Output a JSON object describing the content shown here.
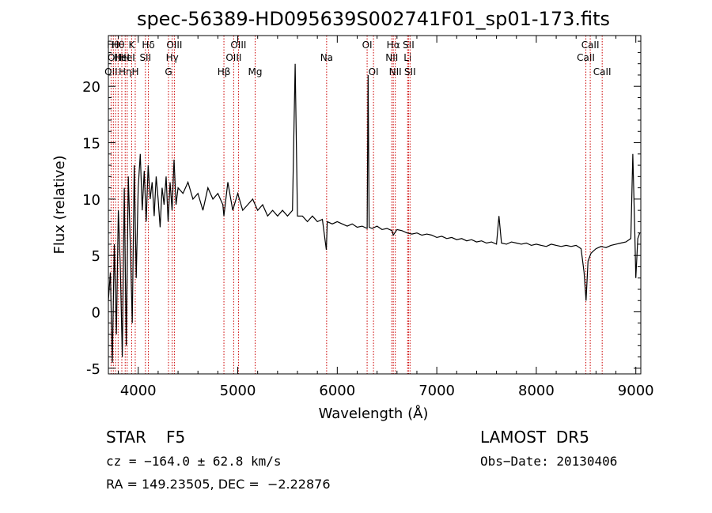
{
  "chart_data": {
    "type": "line",
    "title": "spec-56389-HD095639S002741F01_sp01-173.fits",
    "xlabel": "Wavelength (Å)",
    "ylabel": "Flux (relative)",
    "xlim": [
      3700,
      9050
    ],
    "ylim": [
      -5.5,
      24.5
    ],
    "xticks": [
      4000,
      5000,
      6000,
      7000,
      8000,
      9000
    ],
    "yticks": [
      -5,
      0,
      5,
      10,
      15,
      20
    ],
    "grid": false,
    "line_color": "#000000",
    "marker_color": "#cc0000",
    "series": [
      {
        "x": [
          3700,
          3720,
          3740,
          3760,
          3780,
          3800,
          3820,
          3840,
          3860,
          3880,
          3900,
          3920,
          3940,
          3960,
          3980,
          4000,
          4020,
          4040,
          4060,
          4080,
          4100,
          4120,
          4140,
          4160,
          4180,
          4200,
          4220,
          4240,
          4260,
          4280,
          4300,
          4320,
          4340,
          4360,
          4380,
          4400,
          4450,
          4500,
          4550,
          4600,
          4650,
          4700,
          4750,
          4800,
          4850,
          4861,
          4900,
          4950,
          5000,
          5050,
          5100,
          5150,
          5200,
          5250,
          5300,
          5350,
          5400,
          5450,
          5500,
          5550,
          5577,
          5600,
          5650,
          5700,
          5750,
          5800,
          5850,
          5890,
          5900,
          5950,
          6000,
          6050,
          6100,
          6150,
          6200,
          6250,
          6300,
          6310,
          6320,
          6350,
          6400,
          6450,
          6500,
          6550,
          6563,
          6600,
          6650,
          6700,
          6750,
          6800,
          6850,
          6900,
          6950,
          7000,
          7050,
          7100,
          7150,
          7200,
          7250,
          7300,
          7350,
          7400,
          7450,
          7500,
          7550,
          7600,
          7625,
          7650,
          7700,
          7750,
          7800,
          7850,
          7900,
          7950,
          8000,
          8050,
          8100,
          8150,
          8200,
          8250,
          8300,
          8350,
          8400,
          8450,
          8480,
          8500,
          8520,
          8550,
          8600,
          8650,
          8700,
          8750,
          8800,
          8850,
          8900,
          8950,
          8970,
          8990,
          9000,
          9020,
          9040
        ],
        "y": [
          1.0,
          3.5,
          -4.5,
          6.0,
          -2.0,
          9.0,
          4.0,
          -4.0,
          11.0,
          -3.0,
          12.0,
          6.0,
          -1.0,
          13.0,
          3.0,
          11.0,
          14.0,
          9.0,
          12.5,
          8.0,
          13.0,
          10.0,
          11.5,
          8.5,
          12.0,
          10.0,
          7.5,
          11.0,
          9.5,
          12.0,
          8.0,
          11.5,
          9.0,
          13.5,
          9.5,
          11.0,
          10.5,
          11.5,
          10.0,
          10.5,
          9.0,
          11.0,
          10.0,
          10.5,
          9.5,
          8.5,
          11.5,
          9.0,
          10.5,
          9.0,
          9.5,
          10.0,
          9.0,
          9.5,
          8.5,
          9.0,
          8.5,
          9.0,
          8.5,
          9.0,
          22.0,
          8.5,
          8.5,
          8.0,
          8.5,
          8.0,
          8.2,
          5.5,
          8.0,
          7.8,
          8.0,
          7.8,
          7.6,
          7.8,
          7.5,
          7.6,
          7.4,
          21.0,
          7.5,
          7.4,
          7.6,
          7.3,
          7.4,
          7.2,
          6.8,
          7.3,
          7.2,
          7.0,
          6.9,
          7.0,
          6.8,
          6.9,
          6.8,
          6.6,
          6.7,
          6.5,
          6.6,
          6.4,
          6.5,
          6.3,
          6.4,
          6.2,
          6.3,
          6.1,
          6.2,
          6.0,
          8.5,
          6.1,
          6.0,
          6.2,
          6.1,
          6.0,
          6.1,
          5.9,
          6.0,
          5.9,
          5.8,
          6.0,
          5.9,
          5.8,
          5.9,
          5.8,
          5.9,
          5.6,
          3.5,
          1.0,
          4.5,
          5.2,
          5.6,
          5.8,
          5.7,
          5.9,
          6.0,
          6.1,
          6.2,
          6.5,
          14.0,
          6.8,
          3.0,
          6.5,
          7.0
        ]
      }
    ],
    "line_markers": [
      {
        "x": 3727,
        "row": 3,
        "label": "OII"
      },
      {
        "x": 3750,
        "row": 1,
        "label": "Hθ"
      },
      {
        "x": 3772,
        "row": 2,
        "label": "OIII"
      },
      {
        "x": 3798,
        "row": 1,
        "label": "Hθ"
      },
      {
        "x": 3835,
        "row": 2,
        "label": "HeI"
      },
      {
        "x": 3869,
        "row": 3,
        "label": "Hη"
      },
      {
        "x": 3889,
        "row": 2,
        "label": "HeI"
      },
      {
        "x": 3934,
        "row": 1,
        "label": "K"
      },
      {
        "x": 3970,
        "row": 3,
        "label": "H"
      },
      {
        "x": 4072,
        "row": 2,
        "label": "SII"
      },
      {
        "x": 4102,
        "row": 1,
        "label": "Hδ"
      },
      {
        "x": 4304,
        "row": 3,
        "label": "G"
      },
      {
        "x": 4341,
        "row": 2,
        "label": "Hγ"
      },
      {
        "x": 4363,
        "row": 1,
        "label": "OIII"
      },
      {
        "x": 4861,
        "row": 3,
        "label": "Hβ"
      },
      {
        "x": 4959,
        "row": 2,
        "label": "OIII"
      },
      {
        "x": 5007,
        "row": 1,
        "label": "OIII"
      },
      {
        "x": 5175,
        "row": 3,
        "label": "Mg"
      },
      {
        "x": 5893,
        "row": 2,
        "label": "Na"
      },
      {
        "x": 6300,
        "row": 1,
        "label": "OI"
      },
      {
        "x": 6364,
        "row": 3,
        "label": "OI"
      },
      {
        "x": 6548,
        "row": 2,
        "label": "NII"
      },
      {
        "x": 6563,
        "row": 1,
        "label": "Hα"
      },
      {
        "x": 6583,
        "row": 3,
        "label": "NII"
      },
      {
        "x": 6707,
        "row": 2,
        "label": "Li"
      },
      {
        "x": 6716,
        "row": 1,
        "label": "SII"
      },
      {
        "x": 6731,
        "row": 3,
        "label": "SII"
      },
      {
        "x": 8498,
        "row": 2,
        "label": "CaII"
      },
      {
        "x": 8542,
        "row": 1,
        "label": "CaII"
      },
      {
        "x": 8662,
        "row": 3,
        "label": "CaII"
      }
    ]
  },
  "info": {
    "object_class": "STAR",
    "subclass": "F5",
    "survey": "LAMOST  DR5",
    "redshift": "cz = −164.0 ± 62.8 km/s",
    "obs_date": "Obs−Date: 20130406",
    "coords": "RA = 149.23505, DEC =  −2.22876"
  }
}
